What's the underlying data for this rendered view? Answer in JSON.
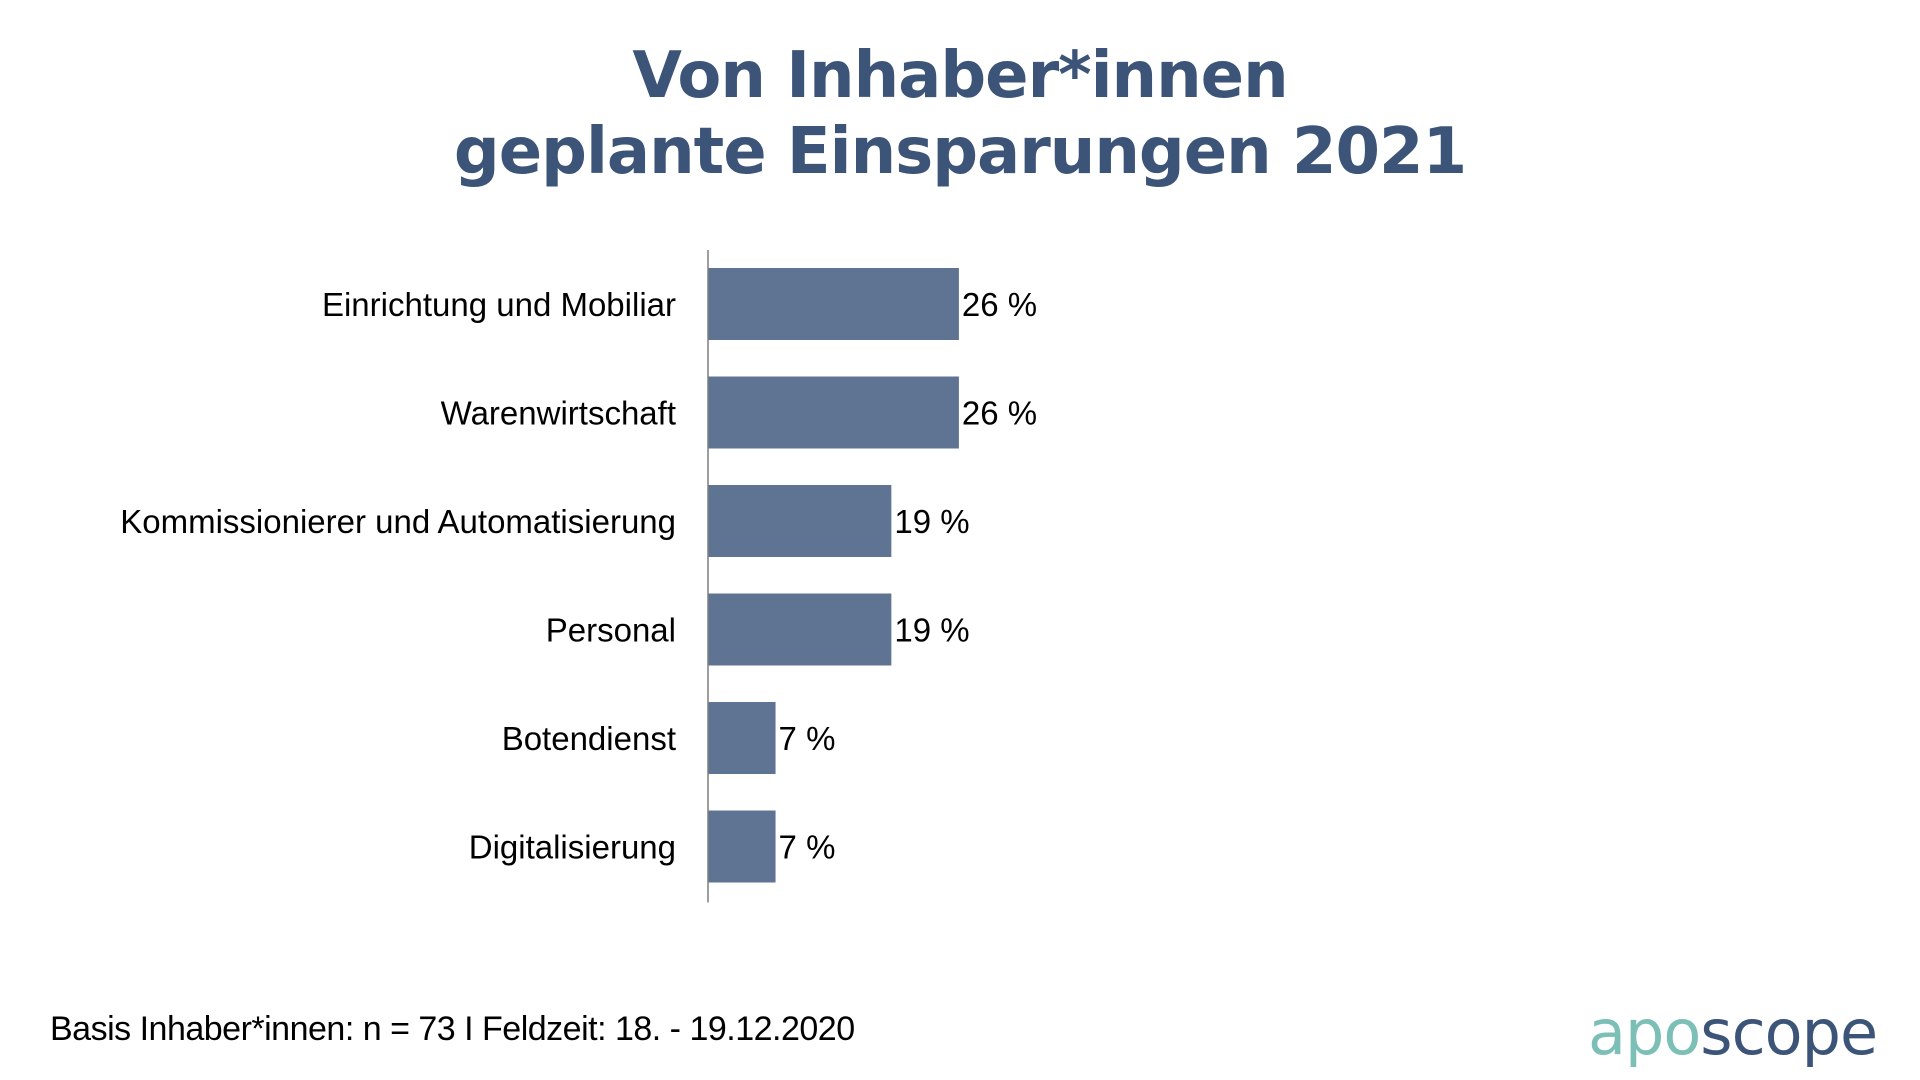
{
  "chart_data": {
    "type": "bar",
    "orientation": "horizontal",
    "title": "Von Inhaber*innen geplante Einsparungen 2021",
    "title_lines": [
      "Von Inhaber*innen",
      "geplante Einsparungen 2021"
    ],
    "categories": [
      "Einrichtung und Mobiliar",
      "Warenwirtschaft",
      "Kommissionierer und Automatisierung",
      "Personal",
      "Botendienst",
      "Digitalisierung"
    ],
    "values": [
      26,
      26,
      19,
      19,
      7,
      7
    ],
    "value_labels": [
      "26 %",
      "26 %",
      "19 %",
      "19 %",
      "7 %",
      "7 %"
    ],
    "unit": "%",
    "xlabel": "",
    "ylabel": "",
    "xlim": [
      0,
      30
    ],
    "grid": false,
    "legend": "none",
    "bar_color": "#5f7392"
  },
  "colors": {
    "title": "#3d5479",
    "bar": "#5f7392",
    "axis": "#7f7f7f",
    "logo_apo": "#7bbfb6",
    "logo_scope": "#3d5479"
  },
  "footer": {
    "note": "Basis Inhaber*innen: n = 73 I Feldzeit: 18. - 19.12.2020"
  },
  "logo": {
    "part1": "apo",
    "part2": "scope"
  }
}
